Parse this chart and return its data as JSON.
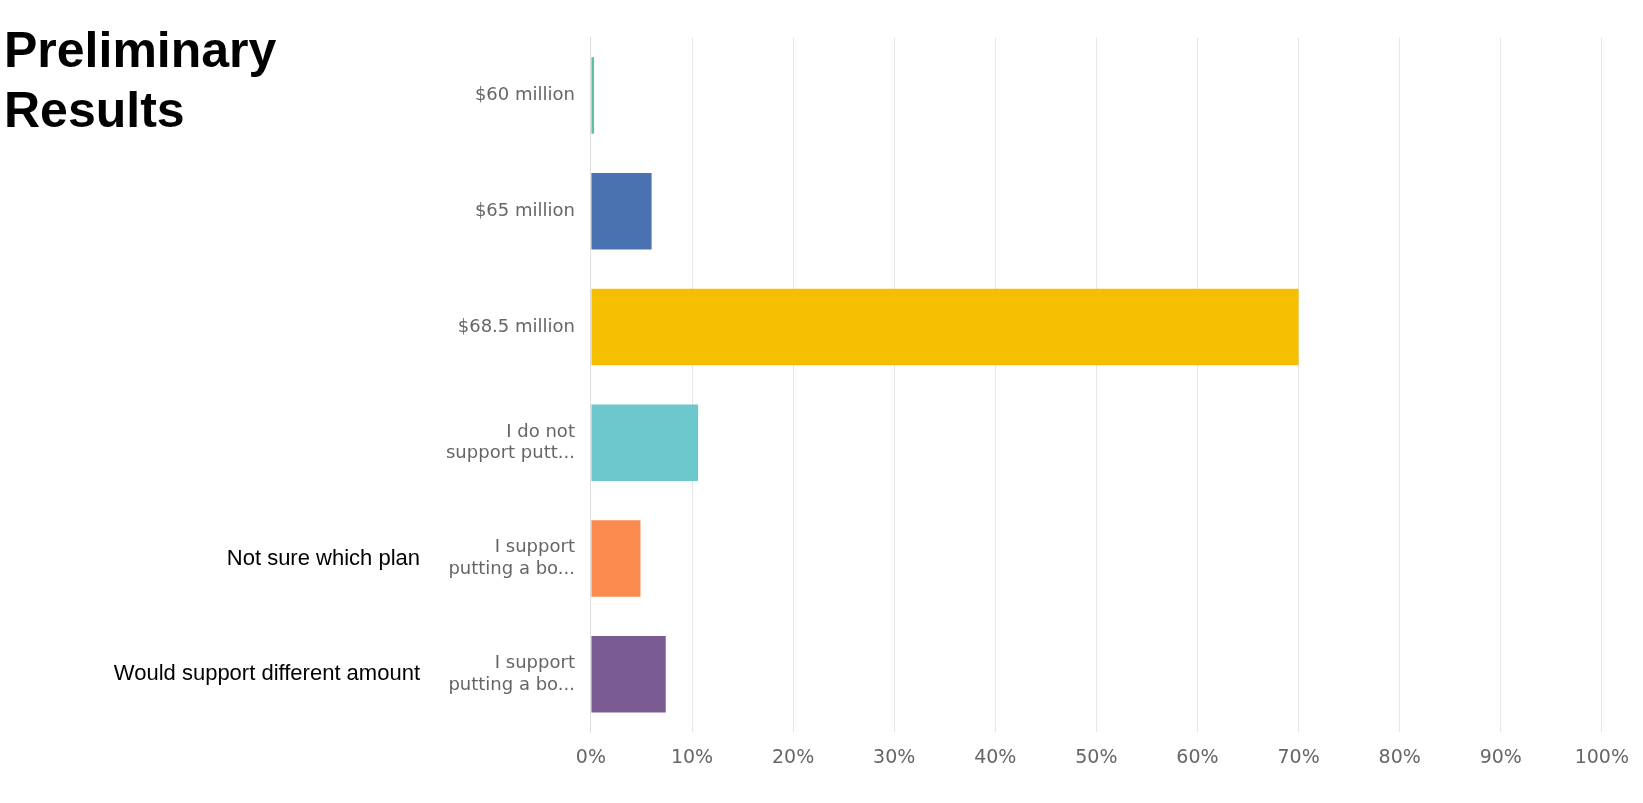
{
  "chart_data": {
    "type": "bar",
    "orientation": "horizontal",
    "title": "Preliminary Results",
    "categories": [
      "$60 million",
      "$65 million",
      "$68.5 million",
      "I do not support putt...",
      "I support putting a bo...",
      "I support putting a bo..."
    ],
    "values": [
      0.3,
      6,
      70,
      10.6,
      4.9,
      7.4
    ],
    "colors": [
      "#5fbf9c",
      "#4a72b0",
      "#f6be00",
      "#6cc8cc",
      "#fb8a4e",
      "#7b5c92"
    ],
    "xlim": [
      0,
      100
    ],
    "xticks": [
      {
        "value": 0,
        "label": "0%"
      },
      {
        "value": 10,
        "label": "10%"
      },
      {
        "value": 20,
        "label": "20%"
      },
      {
        "value": 30,
        "label": "30%"
      },
      {
        "value": 40,
        "label": "40%"
      },
      {
        "value": 50,
        "label": "50%"
      },
      {
        "value": 60,
        "label": "60%"
      },
      {
        "value": 70,
        "label": "70%"
      },
      {
        "value": 80,
        "label": "80%"
      },
      {
        "value": 90,
        "label": "90%"
      },
      {
        "value": 100,
        "label": "100%"
      }
    ],
    "annotations": [
      "Not sure which plan",
      "Would support different amount"
    ],
    "grid": "x",
    "legend": false
  }
}
